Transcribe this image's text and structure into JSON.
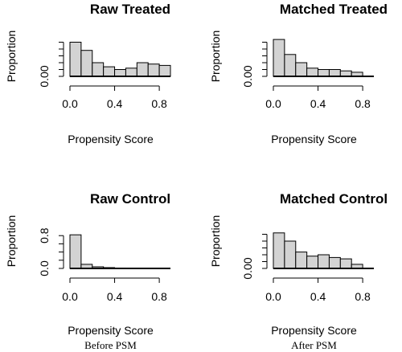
{
  "chart_data": [
    {
      "type": "bar",
      "title": "Raw Treated",
      "xlabel": "Propensity Score",
      "ylabel": "Proportion",
      "caption": "",
      "xlim": [
        0,
        0.9
      ],
      "ylim": [
        0,
        0.3
      ],
      "x_ticks": [
        "0.0",
        "0.4",
        "0.8"
      ],
      "x_tick_values": [
        0,
        0.4,
        0.8
      ],
      "y_ticks": [
        "0.00"
      ],
      "y_tick_values": [
        0
      ],
      "y_minor_ticks": [
        0,
        0.05,
        0.1,
        0.15,
        0.2,
        0.25
      ],
      "bin_edges": [
        0,
        0.1,
        0.2,
        0.3,
        0.4,
        0.5,
        0.6,
        0.7,
        0.8,
        0.9
      ],
      "values": [
        0.25,
        0.19,
        0.1,
        0.07,
        0.05,
        0.06,
        0.1,
        0.09,
        0.08
      ]
    },
    {
      "type": "bar",
      "title": "Matched Treated",
      "xlabel": "Propensity Score",
      "ylabel": "Proportion",
      "caption": "",
      "xlim": [
        0,
        0.9
      ],
      "ylim": [
        0,
        0.3
      ],
      "x_ticks": [
        "0.0",
        "0.4",
        "0.8"
      ],
      "x_tick_values": [
        0,
        0.4,
        0.8
      ],
      "y_ticks": [
        "0.00"
      ],
      "y_tick_values": [
        0
      ],
      "y_minor_ticks": [
        0,
        0.05,
        0.1,
        0.15,
        0.2,
        0.25
      ],
      "bin_edges": [
        0,
        0.1,
        0.2,
        0.3,
        0.4,
        0.5,
        0.6,
        0.7,
        0.8
      ],
      "values": [
        0.27,
        0.16,
        0.1,
        0.06,
        0.05,
        0.05,
        0.04,
        0.03
      ]
    },
    {
      "type": "bar",
      "title": "Raw Control",
      "xlabel": "Propensity Score",
      "ylabel": "Proportion",
      "caption": "Before PSM",
      "xlim": [
        0,
        0.9
      ],
      "ylim": [
        0,
        1.0
      ],
      "x_ticks": [
        "0.0",
        "0.4",
        "0.8"
      ],
      "x_tick_values": [
        0,
        0.4,
        0.8
      ],
      "y_ticks": [
        "0.0",
        "0.8"
      ],
      "y_tick_values": [
        0,
        0.8
      ],
      "y_minor_ticks": [
        0,
        0.2,
        0.4,
        0.6,
        0.8
      ],
      "bin_edges": [
        0,
        0.1,
        0.2,
        0.3,
        0.4,
        0.5,
        0.6,
        0.7,
        0.8
      ],
      "values": [
        0.82,
        0.1,
        0.04,
        0.02,
        0.01,
        0.005,
        0.004,
        0.003
      ]
    },
    {
      "type": "bar",
      "title": "Matched Control",
      "xlabel": "Propensity Score",
      "ylabel": "Proportion",
      "caption": "After PSM",
      "xlim": [
        0,
        0.9
      ],
      "ylim": [
        0,
        0.3
      ],
      "x_ticks": [
        "0.0",
        "0.4",
        "0.8"
      ],
      "x_tick_values": [
        0,
        0.4,
        0.8
      ],
      "y_ticks": [
        "0.00"
      ],
      "y_tick_values": [
        0
      ],
      "y_minor_ticks": [
        0,
        0.05,
        0.1,
        0.15,
        0.2,
        0.25
      ],
      "bin_edges": [
        0,
        0.1,
        0.2,
        0.3,
        0.4,
        0.5,
        0.6,
        0.7,
        0.8
      ],
      "values": [
        0.26,
        0.2,
        0.12,
        0.09,
        0.1,
        0.08,
        0.07,
        0.03
      ]
    }
  ]
}
